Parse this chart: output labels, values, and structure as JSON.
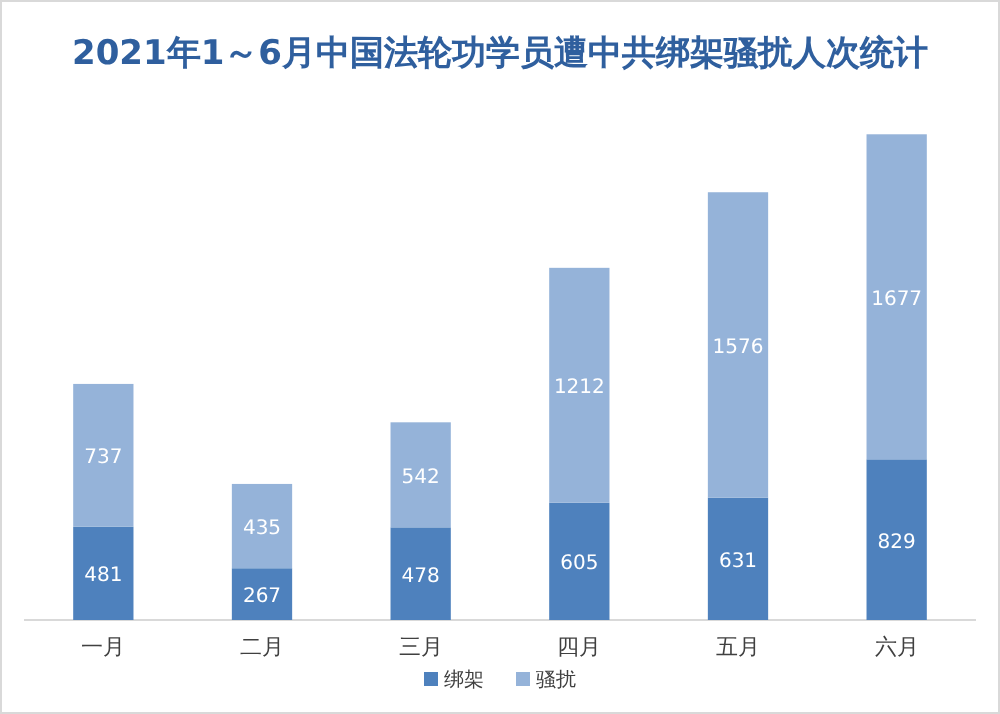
{
  "chart_data": {
    "type": "bar",
    "title": "2021年1～6月中国法轮功学员遭中共绑架骚扰人次统计",
    "categories": [
      "一月",
      "二月",
      "三月",
      "四月",
      "五月",
      "六月"
    ],
    "stacked": true,
    "data_labels": true,
    "legend": "bottom",
    "series": [
      {
        "name": "绑架",
        "color": "#4e81bd",
        "values": [
          481,
          267,
          478,
          605,
          631,
          829
        ]
      },
      {
        "name": "骚扰",
        "color": "#95b3d9",
        "values": [
          737,
          435,
          542,
          1212,
          1576,
          1677
        ]
      }
    ]
  }
}
